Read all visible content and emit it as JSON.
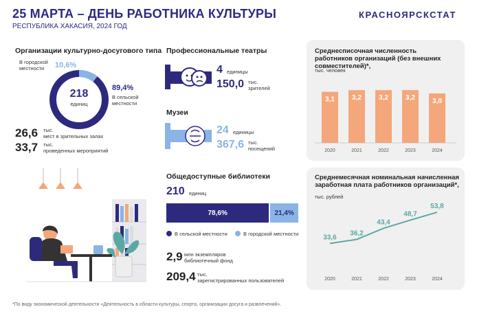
{
  "header": {
    "title": "25 МАРТА – ДЕНЬ РАБОТНИКА КУЛЬТУРЫ",
    "subtitle": "РЕСПУБЛИКА ХАКАСИЯ, 2024 ГОД",
    "brand": "КРАСНОЯРСКСТАТ"
  },
  "orgs": {
    "title": "Организации культурно-досугового типа",
    "city_label": "В городской местности",
    "city_pct": "10,6%",
    "city_share": 10.6,
    "rural_pct": "89,4%",
    "rural_label": "В сельской местности",
    "total": "218",
    "total_unit": "единиц",
    "seats_value": "26,6",
    "seats_unit": "тыс.",
    "seats_label": "мест в зрительных залах",
    "events_value": "33,7",
    "events_unit": "тыс.",
    "events_label": "проведенных мероприятий"
  },
  "theatres": {
    "title": "Профессиональные театры",
    "count": "4",
    "count_unit": "единицы",
    "viewers": "150,0",
    "viewers_unit": "тыс.",
    "viewers_label": "зрителей"
  },
  "museums": {
    "title": "Музеи",
    "count": "24",
    "count_unit": "единицы",
    "visits": "367,6",
    "visits_unit": "тыс.",
    "visits_label": "посещений"
  },
  "libraries": {
    "title": "Общедоступные библиотеки",
    "count": "210",
    "count_unit": "единиц",
    "rural_pct": "78,6%",
    "rural_share": 78.6,
    "city_pct": "21,4%",
    "legend_rural": "В сельской местности",
    "legend_city": "В городской местности",
    "fund_value": "2,9",
    "fund_unit": "млн экземпляров",
    "fund_label": "библиотечный фонд",
    "users_value": "209,4",
    "users_unit": "тыс.",
    "users_label": "зарегистрированных пользователей"
  },
  "colors": {
    "navy": "#2d2a7e",
    "light_blue": "#8ab4e6",
    "orange": "#f4a77a",
    "teal": "#5aa8a3"
  },
  "chart_data": [
    {
      "type": "bar",
      "title": "Среднесписочная численность работников организаций (без внешних совместителей)*,",
      "ylabel": "тыс. человек",
      "categories": [
        "2020",
        "2021",
        "2022",
        "2023",
        "2024"
      ],
      "values": [
        3.1,
        3.2,
        3.2,
        3.2,
        3.0
      ],
      "labels": [
        "3,1",
        "3,2",
        "3,2",
        "3,2",
        "3,0"
      ],
      "ylim": [
        0,
        3.5
      ]
    },
    {
      "type": "line",
      "title": "Среднемесячная номинальная начисленная заработная плата работников организаций*,",
      "ylabel": "тыс. рублей",
      "categories": [
        "2020",
        "2021",
        "2022",
        "2023",
        "2024"
      ],
      "values": [
        33.6,
        36.2,
        43.4,
        48.7,
        53.8
      ],
      "labels": [
        "33,6",
        "36,2",
        "43,4",
        "48,7",
        "53,8"
      ],
      "ylim": [
        20,
        60
      ]
    }
  ],
  "footnote": "*По виду экономической деятельности «Деятельность в области культуры, спорта, организации досуга и развлечений»."
}
